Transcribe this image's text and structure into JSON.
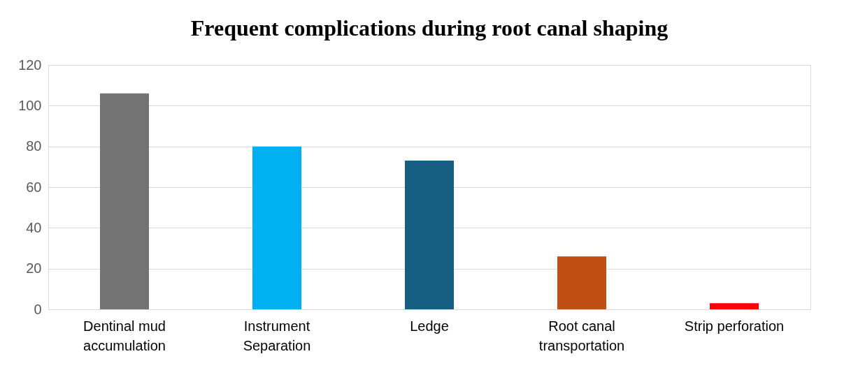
{
  "chart_data": {
    "type": "bar",
    "title": "Frequent complications during root canal shaping",
    "categories": [
      "Dentinal mud accumulation",
      "Instrument Separation",
      "Ledge",
      "Root canal transportation",
      "Strip perforation"
    ],
    "values": [
      106,
      80,
      73,
      26,
      3
    ],
    "colors": [
      "#737373",
      "#00b0f0",
      "#175f82",
      "#c04f15",
      "#ff0000"
    ],
    "ylim": [
      0,
      120
    ],
    "yticks": [
      0,
      20,
      40,
      60,
      80,
      100,
      120
    ],
    "grid": "y"
  }
}
